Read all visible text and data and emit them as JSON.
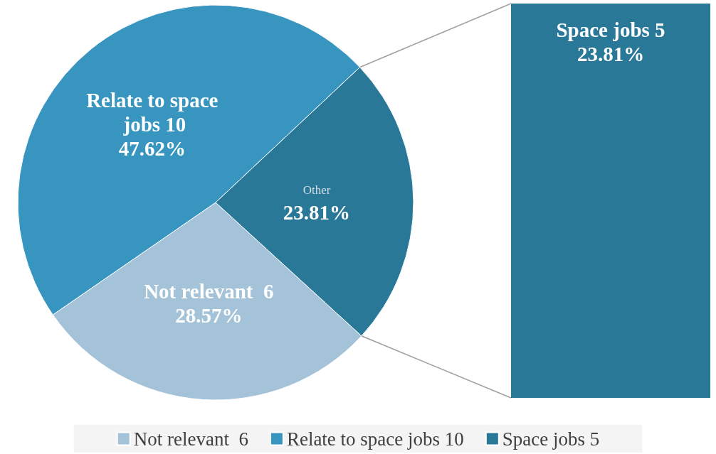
{
  "chart_data": {
    "type": "pie",
    "categories": [
      "Not relevant  6",
      "Relate to space jobs 10",
      "Space jobs 5"
    ],
    "values": [
      28.57,
      47.62,
      23.81
    ],
    "colors": [
      "#a5c3d8",
      "#3795bf",
      "#2a7898"
    ],
    "value_labels": [
      "28.57%",
      "47.62%",
      "23.81%"
    ],
    "annotations": [
      "Other"
    ],
    "legend": "bottom"
  }
}
